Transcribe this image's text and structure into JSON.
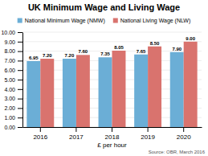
{
  "chart_data": {
    "type": "bar",
    "title": "UK Minimum Wage and Living Wage",
    "categories": [
      "2016",
      "2017",
      "2018",
      "2019",
      "2020"
    ],
    "series": [
      {
        "name": "National Minimum Wage (NMW)",
        "color": "#6baed6",
        "values": [
          6.95,
          7.2,
          7.35,
          7.65,
          7.9
        ],
        "value_labels": [
          "6.95",
          "7.20",
          "7.35",
          "7.65",
          "7.90"
        ]
      },
      {
        "name": "National Living Wage (NLW)",
        "color": "#d9736e",
        "values": [
          7.2,
          7.6,
          8.05,
          8.5,
          9.0
        ],
        "value_labels": [
          "7.20",
          "7.60",
          "8.05",
          "8.50",
          "9.00"
        ]
      }
    ],
    "xlabel": "£ per hour",
    "ylim": [
      0,
      10.0
    ],
    "yticks": [
      {
        "value": 0,
        "label": "0.00"
      },
      {
        "value": 1,
        "label": "1.00"
      },
      {
        "value": 2,
        "label": "2.00"
      },
      {
        "value": 3,
        "label": "3.00"
      },
      {
        "value": 4,
        "label": "4.00"
      },
      {
        "value": 5,
        "label": "5.00"
      },
      {
        "value": 6,
        "label": "6.00"
      },
      {
        "value": 7,
        "label": "7.00"
      },
      {
        "value": 8,
        "label": "8.00"
      },
      {
        "value": 9,
        "label": "9.00"
      },
      {
        "value": 10,
        "label": "10.00"
      }
    ],
    "grid": true,
    "legend": "top",
    "data_labels": true,
    "annotations": [
      "Source: OBR, March 2016"
    ]
  }
}
